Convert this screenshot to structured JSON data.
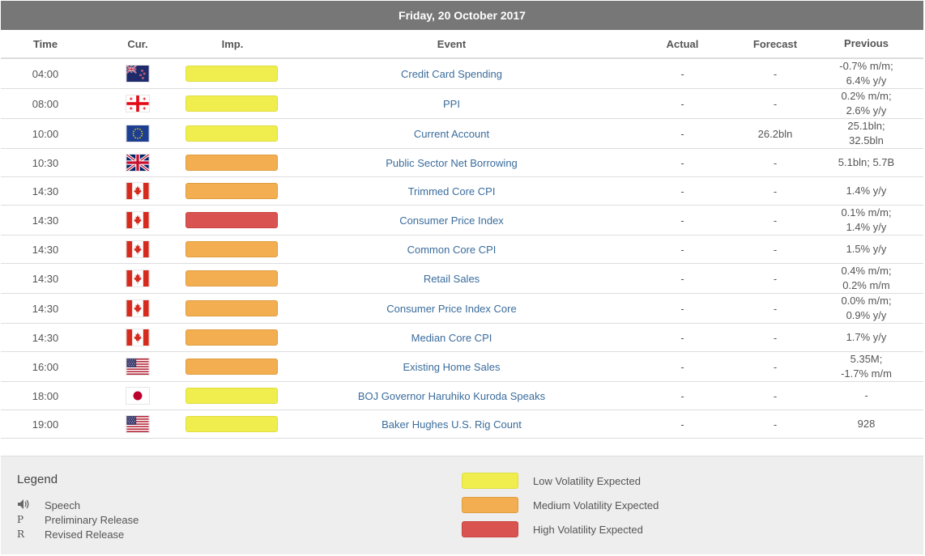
{
  "date_header": "Friday, 20 October 2017",
  "columns": {
    "time": "Time",
    "currency": "Cur.",
    "importance": "Imp.",
    "event": "Event",
    "actual": "Actual",
    "forecast": "Forecast",
    "previous": "Previous"
  },
  "rows": [
    {
      "time": "04:00",
      "flag": "NZ",
      "imp": "low",
      "event": "Credit Card Spending",
      "actual": "-",
      "forecast": "-",
      "previous": [
        "-0.7% m/m;",
        "6.4% y/y"
      ]
    },
    {
      "time": "08:00",
      "flag": "GE",
      "imp": "low",
      "event": "PPI",
      "actual": "-",
      "forecast": "-",
      "previous": [
        "0.2% m/m;",
        "2.6% y/y"
      ]
    },
    {
      "time": "10:00",
      "flag": "EU",
      "imp": "low",
      "event": "Current Account",
      "actual": "-",
      "forecast": "26.2bln",
      "previous": [
        "25.1bln;",
        "32.5bln"
      ]
    },
    {
      "time": "10:30",
      "flag": "GB",
      "imp": "med",
      "event": "Public Sector Net Borrowing",
      "actual": "-",
      "forecast": "-",
      "previous": [
        "5.1bln; 5.7B"
      ]
    },
    {
      "time": "14:30",
      "flag": "CA",
      "imp": "med",
      "event": "Trimmed Core CPI",
      "actual": "-",
      "forecast": "-",
      "previous": [
        "1.4% y/y"
      ]
    },
    {
      "time": "14:30",
      "flag": "CA",
      "imp": "high",
      "event": "Consumer Price Index",
      "actual": "-",
      "forecast": "-",
      "previous": [
        "0.1% m/m;",
        "1.4% y/y"
      ]
    },
    {
      "time": "14:30",
      "flag": "CA",
      "imp": "med",
      "event": "Common Core CPI",
      "actual": "-",
      "forecast": "-",
      "previous": [
        "1.5% y/y"
      ]
    },
    {
      "time": "14:30",
      "flag": "CA",
      "imp": "med",
      "event": "Retail Sales",
      "actual": "-",
      "forecast": "-",
      "previous": [
        "0.4% m/m;",
        "0.2% m/m"
      ]
    },
    {
      "time": "14:30",
      "flag": "CA",
      "imp": "med",
      "event": "Consumer Price Index Core",
      "actual": "-",
      "forecast": "-",
      "previous": [
        "0.0% m/m;",
        "0.9% y/y"
      ]
    },
    {
      "time": "14:30",
      "flag": "CA",
      "imp": "med",
      "event": "Median Core CPI",
      "actual": "-",
      "forecast": "-",
      "previous": [
        "1.7% y/y"
      ]
    },
    {
      "time": "16:00",
      "flag": "US",
      "imp": "med",
      "event": "Existing Home Sales",
      "actual": "-",
      "forecast": "-",
      "previous": [
        "5.35M;",
        "-1.7% m/m"
      ]
    },
    {
      "time": "18:00",
      "flag": "JP",
      "imp": "low",
      "event": "BOJ Governor Haruhiko Kuroda Speaks",
      "actual": "-",
      "forecast": "-",
      "previous": [
        "-"
      ]
    },
    {
      "time": "19:00",
      "flag": "US",
      "imp": "low",
      "event": "Baker Hughes U.S. Rig Count",
      "actual": "-",
      "forecast": "-",
      "previous": [
        "928"
      ]
    }
  ],
  "legend": {
    "title": "Legend",
    "items": [
      {
        "symbol": "speaker-icon",
        "label": "Speech"
      },
      {
        "symbol": "P",
        "label": "Preliminary Release"
      },
      {
        "symbol": "R",
        "label": "Revised Release"
      }
    ],
    "volatility": [
      {
        "level": "low",
        "label": "Low Volatility Expected"
      },
      {
        "level": "med",
        "label": "Medium Volatility Expected"
      },
      {
        "level": "high",
        "label": "High Volatility Expected"
      }
    ]
  },
  "colors": {
    "header_bg": "#777777",
    "low": "#f0ee4e",
    "med": "#f2ae50",
    "high": "#d95450",
    "link": "#3a6c9c"
  }
}
